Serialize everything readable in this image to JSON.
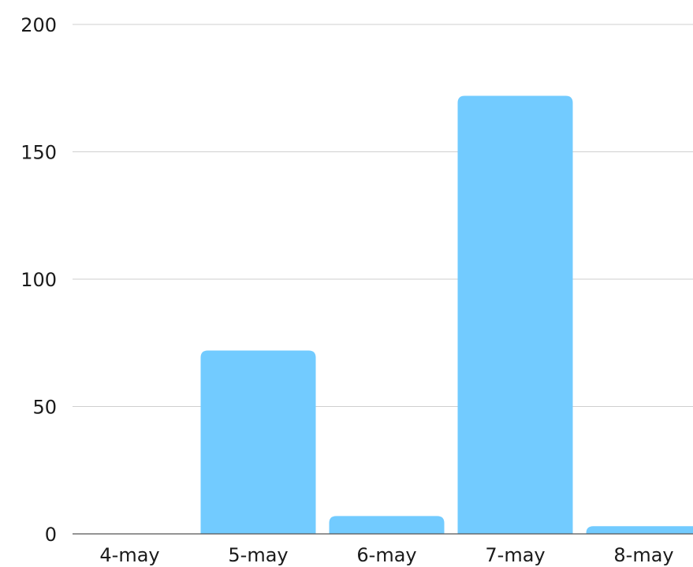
{
  "chart_data": {
    "type": "bar",
    "categories": [
      "4-may",
      "5-may",
      "6-may",
      "7-may",
      "8-may"
    ],
    "values": [
      0,
      72,
      7,
      172,
      3
    ],
    "title": "",
    "xlabel": "",
    "ylabel": "",
    "ylim": [
      0,
      200
    ],
    "yticks": [
      0,
      50,
      100,
      150,
      200
    ],
    "grid": true,
    "legend": "none",
    "bar_color": "#72cbff"
  }
}
